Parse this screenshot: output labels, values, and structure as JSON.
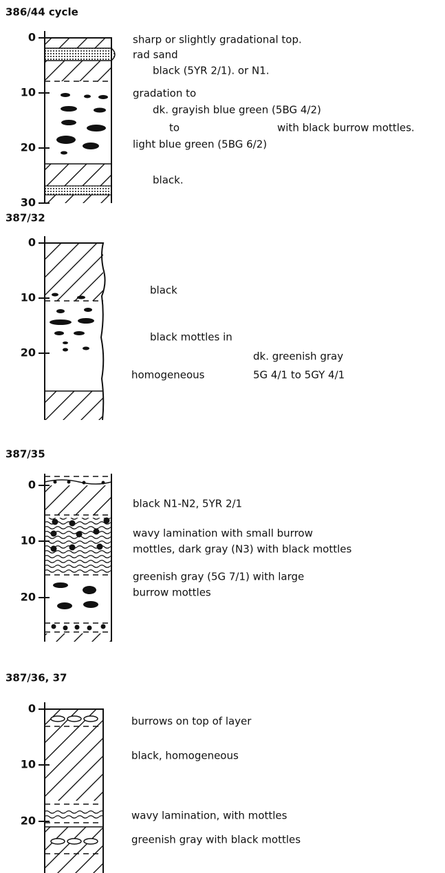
{
  "sections": [
    {
      "title": "386/44 cycle",
      "depth_labels": [
        "0",
        "10",
        "20",
        "30"
      ],
      "notes": [
        "sharp or slightly gradational top.",
        "rad sand",
        "black (5YR 2/1). or N1.",
        "gradation to",
        "dk. grayish blue green (5BG 4/2)",
        "to",
        "with black burrow mottles.",
        "light blue green (5BG 6/2)",
        "black."
      ]
    },
    {
      "title": "387/32",
      "depth_labels": [
        "0",
        "10",
        "20"
      ],
      "notes": [
        "black",
        "black mottles in",
        "dk. greenish gray",
        "homogeneous",
        "5G 4/1 to 5GY 4/1"
      ]
    },
    {
      "title": "387/35",
      "depth_labels": [
        "0",
        "10",
        "20"
      ],
      "notes": [
        "black N1-N2, 5YR 2/1",
        "wavy lamination with small burrow",
        "mottles, dark gray (N3) with black mottles",
        "greenish gray (5G 7/1) with large",
        "burrow mottles"
      ]
    },
    {
      "title": "387/36, 37",
      "depth_labels": [
        "0",
        "10",
        "20"
      ],
      "notes": [
        "burrows on top of layer",
        "black, homogeneous",
        "wavy lamination, with mottles",
        "greenish gray with black mottles"
      ]
    }
  ]
}
